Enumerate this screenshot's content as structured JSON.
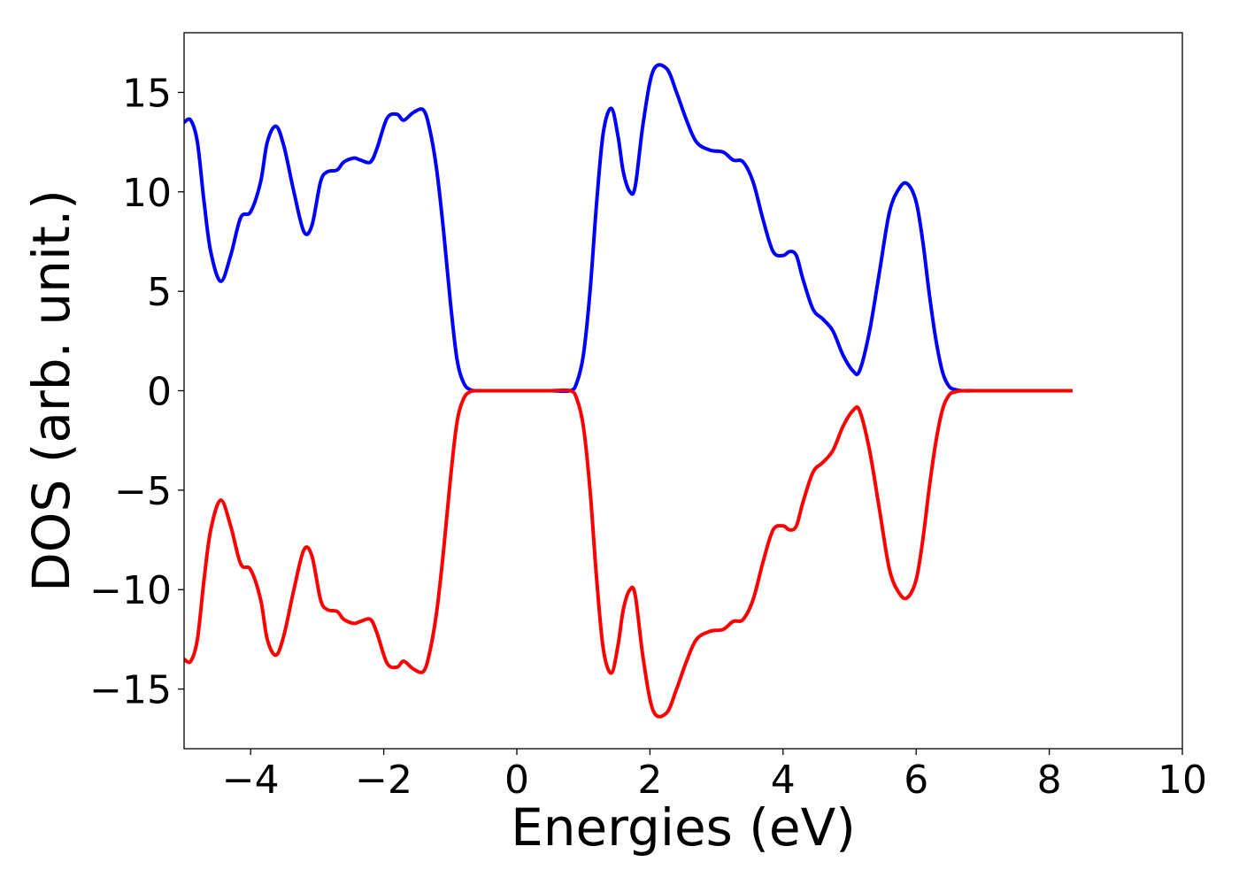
{
  "chart_data": {
    "type": "line",
    "title": "",
    "xlabel": "Energies (eV)",
    "ylabel": "DOS (arb. unit.)",
    "xlim": [
      -5,
      10
    ],
    "ylim": [
      -18,
      18
    ],
    "xticks": [
      -4,
      -2,
      0,
      2,
      4,
      6,
      8,
      10
    ],
    "xtick_labels": [
      "−4",
      "−2",
      "0",
      "2",
      "4",
      "6",
      "8",
      "10"
    ],
    "yticks": [
      -15,
      -10,
      -5,
      0,
      5,
      10,
      15
    ],
    "ytick_labels": [
      "−15",
      "−10",
      "−5",
      "0",
      "5",
      "10",
      "15"
    ],
    "grid": false,
    "legend": "none",
    "series": [
      {
        "color": "#0000ff",
        "x": [
          -5.0,
          -4.9,
          -4.8,
          -4.7,
          -4.6,
          -4.45,
          -4.3,
          -4.15,
          -4.0,
          -3.85,
          -3.75,
          -3.62,
          -3.5,
          -3.35,
          -3.2,
          -3.08,
          -2.95,
          -2.85,
          -2.7,
          -2.6,
          -2.45,
          -2.35,
          -2.2,
          -2.1,
          -1.95,
          -1.8,
          -1.7,
          -1.55,
          -1.4,
          -1.3,
          -1.2,
          -1.1,
          -1.0,
          -0.9,
          -0.8,
          -0.7,
          -0.6,
          -0.5,
          -0.4,
          0.0,
          0.5,
          0.8,
          0.9,
          1.0,
          1.1,
          1.2,
          1.3,
          1.42,
          1.52,
          1.6,
          1.7,
          1.78,
          1.9,
          2.05,
          2.25,
          2.4,
          2.55,
          2.7,
          2.9,
          3.1,
          3.25,
          3.4,
          3.55,
          3.7,
          3.85,
          4.0,
          4.1,
          4.2,
          4.3,
          4.45,
          4.6,
          4.75,
          4.9,
          5.05,
          5.15,
          5.3,
          5.45,
          5.6,
          5.75,
          5.87,
          6.0,
          6.1,
          6.2,
          6.3,
          6.4,
          6.5,
          6.6,
          6.7,
          7.0,
          7.5,
          8.0,
          8.35
        ],
        "y": [
          13.5,
          13.6,
          12.5,
          9.5,
          7.0,
          5.5,
          6.8,
          8.7,
          9.0,
          10.5,
          12.5,
          13.3,
          12.3,
          10.0,
          8.0,
          8.3,
          10.5,
          11.0,
          11.1,
          11.5,
          11.7,
          11.6,
          11.5,
          12.2,
          13.7,
          13.9,
          13.6,
          14.0,
          14.1,
          13.0,
          11.0,
          8.0,
          4.5,
          1.6,
          0.4,
          0.05,
          0.0,
          0.0,
          0.0,
          0.0,
          0.0,
          0.0,
          0.4,
          1.8,
          5.0,
          9.5,
          13.0,
          14.2,
          12.8,
          11.0,
          10.0,
          10.3,
          13.5,
          16.1,
          16.2,
          15.0,
          13.6,
          12.5,
          12.1,
          12.0,
          11.6,
          11.5,
          10.5,
          8.6,
          7.0,
          6.8,
          7.0,
          6.8,
          5.6,
          4.1,
          3.6,
          3.0,
          1.8,
          1.0,
          1.0,
          3.0,
          6.0,
          9.0,
          10.2,
          10.4,
          9.5,
          7.5,
          4.8,
          2.5,
          0.9,
          0.2,
          0.05,
          0.0,
          0.0,
          0.0,
          0.0,
          0.0
        ]
      },
      {
        "color": "#ff0000",
        "x": [
          -5.0,
          -4.9,
          -4.8,
          -4.7,
          -4.6,
          -4.45,
          -4.3,
          -4.15,
          -4.0,
          -3.85,
          -3.75,
          -3.62,
          -3.5,
          -3.35,
          -3.2,
          -3.08,
          -2.95,
          -2.85,
          -2.7,
          -2.6,
          -2.45,
          -2.35,
          -2.2,
          -2.1,
          -1.95,
          -1.8,
          -1.7,
          -1.55,
          -1.4,
          -1.3,
          -1.2,
          -1.1,
          -1.0,
          -0.9,
          -0.8,
          -0.7,
          -0.6,
          -0.5,
          -0.4,
          0.0,
          0.5,
          0.8,
          0.9,
          1.0,
          1.1,
          1.2,
          1.3,
          1.42,
          1.52,
          1.6,
          1.7,
          1.78,
          1.9,
          2.05,
          2.25,
          2.4,
          2.55,
          2.7,
          2.9,
          3.1,
          3.25,
          3.4,
          3.55,
          3.7,
          3.85,
          4.0,
          4.1,
          4.2,
          4.3,
          4.45,
          4.6,
          4.75,
          4.9,
          5.05,
          5.15,
          5.3,
          5.45,
          5.6,
          5.75,
          5.87,
          6.0,
          6.1,
          6.2,
          6.3,
          6.4,
          6.5,
          6.6,
          6.7,
          7.0,
          7.5,
          8.0,
          8.35
        ],
        "y": [
          -13.5,
          -13.6,
          -12.5,
          -9.5,
          -7.0,
          -5.5,
          -6.8,
          -8.7,
          -9.0,
          -10.5,
          -12.5,
          -13.3,
          -12.3,
          -10.0,
          -8.0,
          -8.3,
          -10.5,
          -11.0,
          -11.1,
          -11.5,
          -11.7,
          -11.6,
          -11.5,
          -12.2,
          -13.7,
          -13.9,
          -13.6,
          -14.0,
          -14.1,
          -13.0,
          -11.0,
          -8.0,
          -4.5,
          -1.6,
          -0.4,
          -0.05,
          0.0,
          0.0,
          0.0,
          0.0,
          0.0,
          0.0,
          -0.4,
          -1.8,
          -5.0,
          -9.5,
          -13.0,
          -14.2,
          -12.8,
          -11.0,
          -10.0,
          -10.3,
          -13.5,
          -16.1,
          -16.2,
          -15.0,
          -13.6,
          -12.5,
          -12.1,
          -12.0,
          -11.6,
          -11.5,
          -10.5,
          -8.6,
          -7.0,
          -6.8,
          -7.0,
          -6.8,
          -5.6,
          -4.1,
          -3.6,
          -3.0,
          -1.8,
          -1.0,
          -1.0,
          -3.0,
          -6.0,
          -9.0,
          -10.2,
          -10.4,
          -9.5,
          -7.5,
          -4.8,
          -2.5,
          -0.9,
          -0.2,
          -0.05,
          0.0,
          0.0,
          0.0,
          0.0,
          0.0
        ]
      }
    ]
  }
}
